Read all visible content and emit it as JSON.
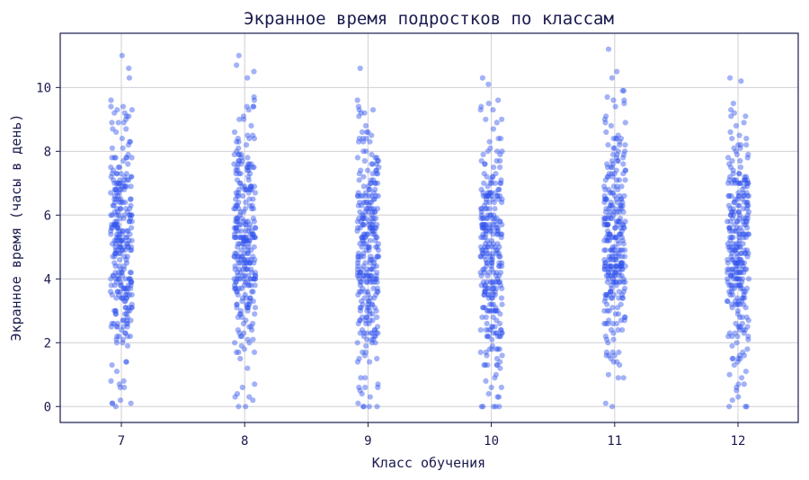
{
  "chart_data": {
    "type": "scatter",
    "subtype": "strip",
    "title": "Экранное время подростков по классам",
    "xlabel": "Класс обучения",
    "ylabel": "Экранное время (часы в день)",
    "categories": [
      "7",
      "8",
      "9",
      "10",
      "11",
      "12"
    ],
    "yticks": [
      "0",
      "2",
      "4",
      "6",
      "8",
      "10"
    ],
    "ylim": [
      -0.5,
      11.7
    ],
    "grid": true,
    "legend": "none",
    "point_color": "#3355ee",
    "points_per_category": 300,
    "series": [
      {
        "category": "7",
        "median": 5.1,
        "q1": 3.8,
        "q3": 6.6,
        "min": 0.0,
        "max": 11.0,
        "notable": [
          11.0,
          10.6,
          9.4,
          9.3,
          9.1,
          0.8,
          0.1,
          0.0
        ]
      },
      {
        "category": "8",
        "median": 5.2,
        "q1": 3.9,
        "q3": 6.6,
        "min": 0.0,
        "max": 11.0,
        "notable": [
          11.0,
          10.7,
          10.5,
          9.7,
          9.4,
          0.7,
          0.3,
          0.0
        ]
      },
      {
        "category": "9",
        "median": 5.0,
        "q1": 3.6,
        "q3": 6.4,
        "min": 0.0,
        "max": 10.6,
        "notable": [
          10.6,
          9.3,
          9.1,
          0.6,
          0.3,
          0.0
        ]
      },
      {
        "category": "10",
        "median": 4.9,
        "q1": 3.7,
        "q3": 6.4,
        "min": 0.0,
        "max": 10.3,
        "notable": [
          10.3,
          10.1,
          9.5,
          9.3,
          0.9,
          0.4,
          0.0
        ]
      },
      {
        "category": "11",
        "median": 5.1,
        "q1": 3.9,
        "q3": 6.4,
        "min": 0.0,
        "max": 11.2,
        "notable": [
          11.2,
          9.7,
          9.6,
          9.1,
          1.4,
          0.9,
          0.0
        ]
      },
      {
        "category": "12",
        "median": 5.0,
        "q1": 3.7,
        "q3": 6.4,
        "min": 0.0,
        "max": 10.3,
        "notable": [
          10.3,
          10.2,
          9.1,
          8.9,
          1.1,
          0.3,
          0.0
        ]
      }
    ]
  }
}
